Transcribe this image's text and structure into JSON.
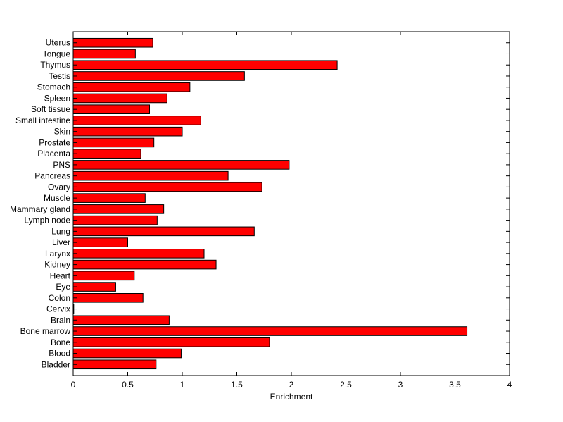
{
  "chart_data": {
    "type": "bar",
    "orientation": "horizontal",
    "title": "",
    "xlabel": "Enrichment",
    "ylabel": "",
    "xlim": [
      0,
      4
    ],
    "xticks": [
      "0",
      "0.5",
      "1",
      "1.5",
      "2",
      "2.5",
      "3",
      "3.5",
      "4"
    ],
    "grid": false,
    "legend": "none",
    "bar_color": "#ff0000",
    "categories": [
      "Bladder",
      "Blood",
      "Bone",
      "Bone marrow",
      "Brain",
      "Cervix",
      "Colon",
      "Eye",
      "Heart",
      "Kidney",
      "Larynx",
      "Liver",
      "Lung",
      "Lymph node",
      "Mammary gland",
      "Muscle",
      "Ovary",
      "Pancreas",
      "PNS",
      "Placenta",
      "Prostate",
      "Skin",
      "Small intestine",
      "Soft tissue",
      "Spleen",
      "Stomach",
      "Testis",
      "Thymus",
      "Tongue",
      "Uterus"
    ],
    "values": [
      0.76,
      0.99,
      1.8,
      3.61,
      0.88,
      0.0,
      0.64,
      0.39,
      0.56,
      1.31,
      1.2,
      0.5,
      1.66,
      0.77,
      0.83,
      0.66,
      1.73,
      1.42,
      1.98,
      0.62,
      0.74,
      1.0,
      1.17,
      0.7,
      0.86,
      1.07,
      1.57,
      2.42,
      0.57,
      0.73
    ]
  }
}
